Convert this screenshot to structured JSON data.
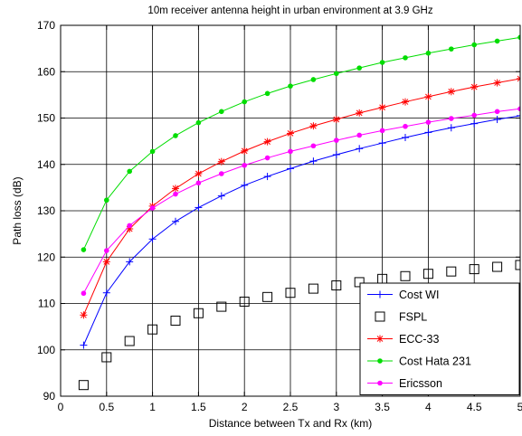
{
  "chart_data": {
    "type": "line",
    "title": "10m receiver antenna height in urban environment at 3.9 GHz",
    "xlabel": "Distance between Tx and Rx (km)",
    "ylabel": "Path loss (dB)",
    "xlim": [
      0,
      5
    ],
    "ylim": [
      90,
      170
    ],
    "xticks": [
      0,
      0.5,
      1,
      1.5,
      2,
      2.5,
      3,
      3.5,
      4,
      4.5,
      5
    ],
    "xtick_labels": [
      "0",
      "0.5",
      "1",
      "1.5",
      "2",
      "2.5",
      "3",
      "3.5",
      "4",
      "4.5",
      "5"
    ],
    "yticks": [
      90,
      100,
      110,
      120,
      130,
      140,
      150,
      160,
      170
    ],
    "ytick_labels": [
      "90",
      "100",
      "110",
      "120",
      "130",
      "140",
      "150",
      "160",
      "170"
    ],
    "grid": true,
    "legend_position": "bottom-right",
    "x": [
      0.25,
      0.5,
      0.75,
      1.0,
      1.25,
      1.5,
      1.75,
      2.0,
      2.25,
      2.5,
      2.75,
      3.0,
      3.25,
      3.5,
      3.75,
      4.0,
      4.25,
      4.5,
      4.75,
      5.0
    ],
    "series": [
      {
        "name": "Cost WI",
        "color": "#0000ff",
        "line": true,
        "marker": "plus",
        "values": [
          101.0,
          112.3,
          119.0,
          123.9,
          127.7,
          130.7,
          133.2,
          135.5,
          137.4,
          139.1,
          140.7,
          142.1,
          143.4,
          144.6,
          145.8,
          146.9,
          147.9,
          148.8,
          149.7,
          150.5
        ]
      },
      {
        "name": "FSPL",
        "color": "#000000",
        "line": false,
        "marker": "square",
        "values": [
          92.4,
          98.4,
          101.9,
          104.4,
          106.3,
          107.9,
          109.3,
          110.4,
          111.4,
          112.3,
          113.2,
          113.9,
          114.6,
          115.3,
          115.9,
          116.4,
          116.9,
          117.4,
          117.9,
          118.3
        ]
      },
      {
        "name": "ECC-33",
        "color": "#ff0000",
        "line": true,
        "marker": "asterisk",
        "values": [
          107.5,
          119.0,
          126.1,
          131.0,
          134.8,
          138.0,
          140.6,
          142.9,
          144.9,
          146.7,
          148.3,
          149.7,
          151.1,
          152.3,
          153.5,
          154.6,
          155.7,
          156.7,
          157.6,
          158.5
        ]
      },
      {
        "name": "Cost Hata 231",
        "color": "#00dd00",
        "line": true,
        "marker": "dot",
        "values": [
          121.6,
          132.3,
          138.5,
          142.8,
          146.2,
          149.0,
          151.4,
          153.5,
          155.3,
          156.9,
          158.3,
          159.6,
          160.8,
          162.0,
          163.0,
          164.0,
          164.9,
          165.8,
          166.6,
          167.4
        ]
      },
      {
        "name": "Ericsson",
        "color": "#ff00ff",
        "line": true,
        "marker": "dot",
        "values": [
          112.2,
          121.4,
          126.8,
          130.6,
          133.6,
          136.0,
          138.0,
          139.8,
          141.4,
          142.8,
          144.0,
          145.2,
          146.3,
          147.3,
          148.2,
          149.1,
          149.9,
          150.6,
          151.4,
          152.0
        ]
      }
    ]
  }
}
